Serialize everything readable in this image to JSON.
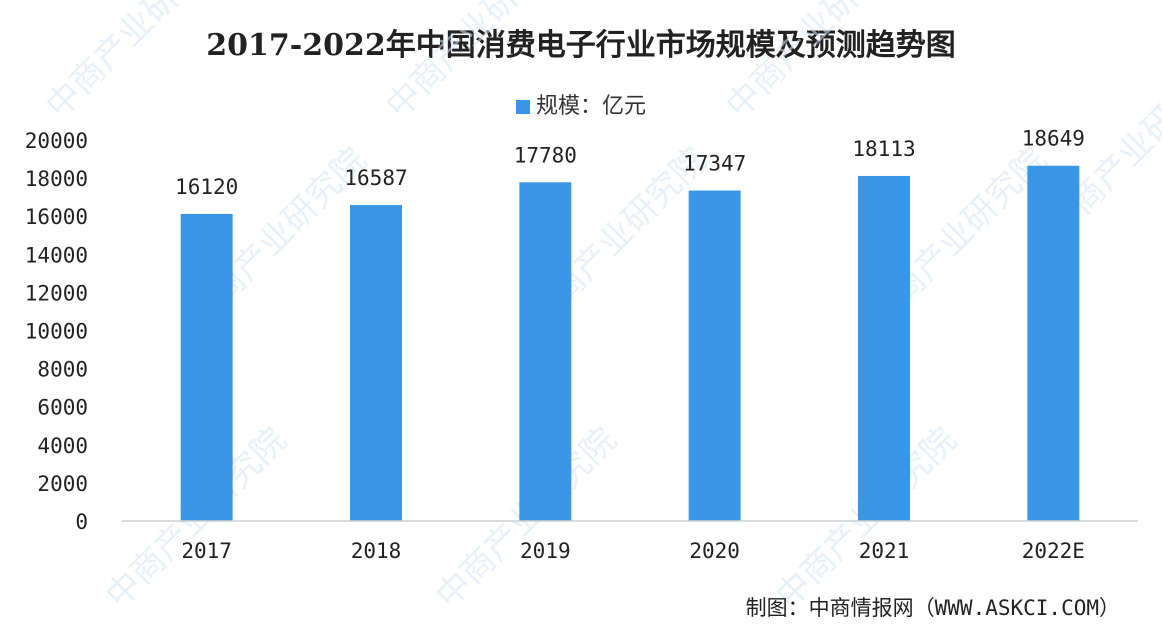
{
  "chart_data": {
    "type": "bar",
    "title": "2017-2022年中国消费电子行业市场规模及预测趋势图",
    "categories": [
      "2017",
      "2018",
      "2019",
      "2020",
      "2021",
      "2022E"
    ],
    "series": [
      {
        "name": "规模：亿元",
        "values": [
          16120,
          16587,
          17780,
          17347,
          18113,
          18649
        ],
        "color": "#3a97e8"
      }
    ],
    "data_labels": [
      "16120",
      "16587",
      "17780",
      "17347",
      "18113",
      "18649"
    ],
    "ylim": [
      0,
      20000
    ],
    "yticks": [
      "0",
      "2000",
      "4000",
      "6000",
      "8000",
      "10000",
      "12000",
      "14000",
      "16000",
      "18000",
      "20000"
    ],
    "grid": false,
    "legend_position": "top-center",
    "source": "制图：中商情报网（WWW.ASKCI.COM）"
  },
  "watermark": "中商产业研究院"
}
